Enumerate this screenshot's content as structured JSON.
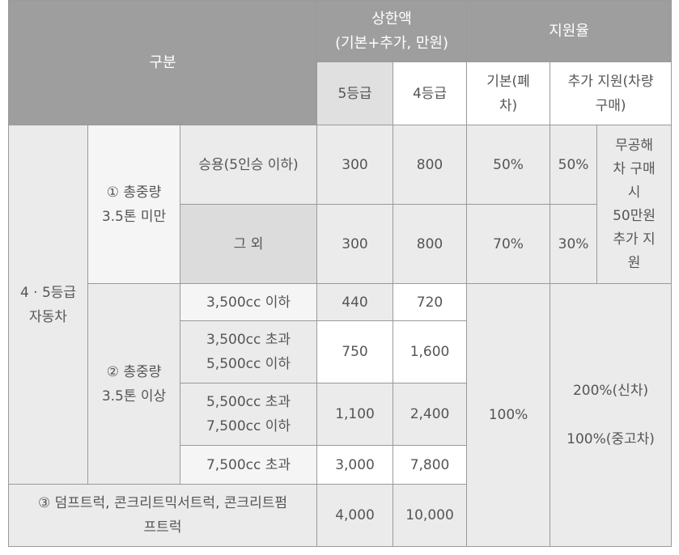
{
  "header": {
    "category": "구분",
    "cap_title_line1": "상한액",
    "cap_title_line2": "(기본+추가, 만원)",
    "rate_title": "지원율",
    "grade5": "5등급",
    "grade4": "4등급",
    "basic_line1": "기본(폐",
    "basic_line2": "차)",
    "extra_line1": "추가 지원(차량",
    "extra_line2": "구매)"
  },
  "group": {
    "line1": "4 · 5등급",
    "line2": "자동차"
  },
  "sub1": {
    "label_line1": "① 총중량",
    "label_line2": "3.5톤 미만"
  },
  "sub2": {
    "label_line1": "② 총중량",
    "label_line2": "3.5톤 이상"
  },
  "rows": [
    {
      "label_line1": "승용(5인승 이하)",
      "label_line2": "",
      "g5": "300",
      "g4": "800",
      "basic": "50%",
      "extra": "50%"
    },
    {
      "label_line1": "그 외",
      "label_line2": "",
      "g5": "300",
      "g4": "800",
      "basic": "70%",
      "extra": "30%"
    },
    {
      "label_line1": "3,500cc 이하",
      "label_line2": "",
      "g5": "440",
      "g4": "720"
    },
    {
      "label_line1": "3,500cc 초과",
      "label_line2": "5,500cc 이하",
      "g5": "750",
      "g4": "1,600"
    },
    {
      "label_line1": "5,500cc 초과",
      "label_line2": "7,500cc 이하",
      "g5": "1,100",
      "g4": "2,400"
    },
    {
      "label_line1": "7,500cc 초과",
      "label_line2": "",
      "g5": "3,000",
      "g4": "7,800"
    },
    {
      "label_line1": "③ 덤프트럭, 콘크리트믹서트럭, 콘크리트펌",
      "label_line2": "프트럭",
      "g5": "4,000",
      "g4": "10,000"
    }
  ],
  "note_no_scrap": {
    "lines": [
      "무공해",
      "차 구매",
      "시",
      "50만원",
      "추가 지",
      "원"
    ]
  },
  "heavy_basic": "100%",
  "heavy_extra": {
    "line1": "200%(신차)",
    "line2": "100%(중고차)"
  }
}
